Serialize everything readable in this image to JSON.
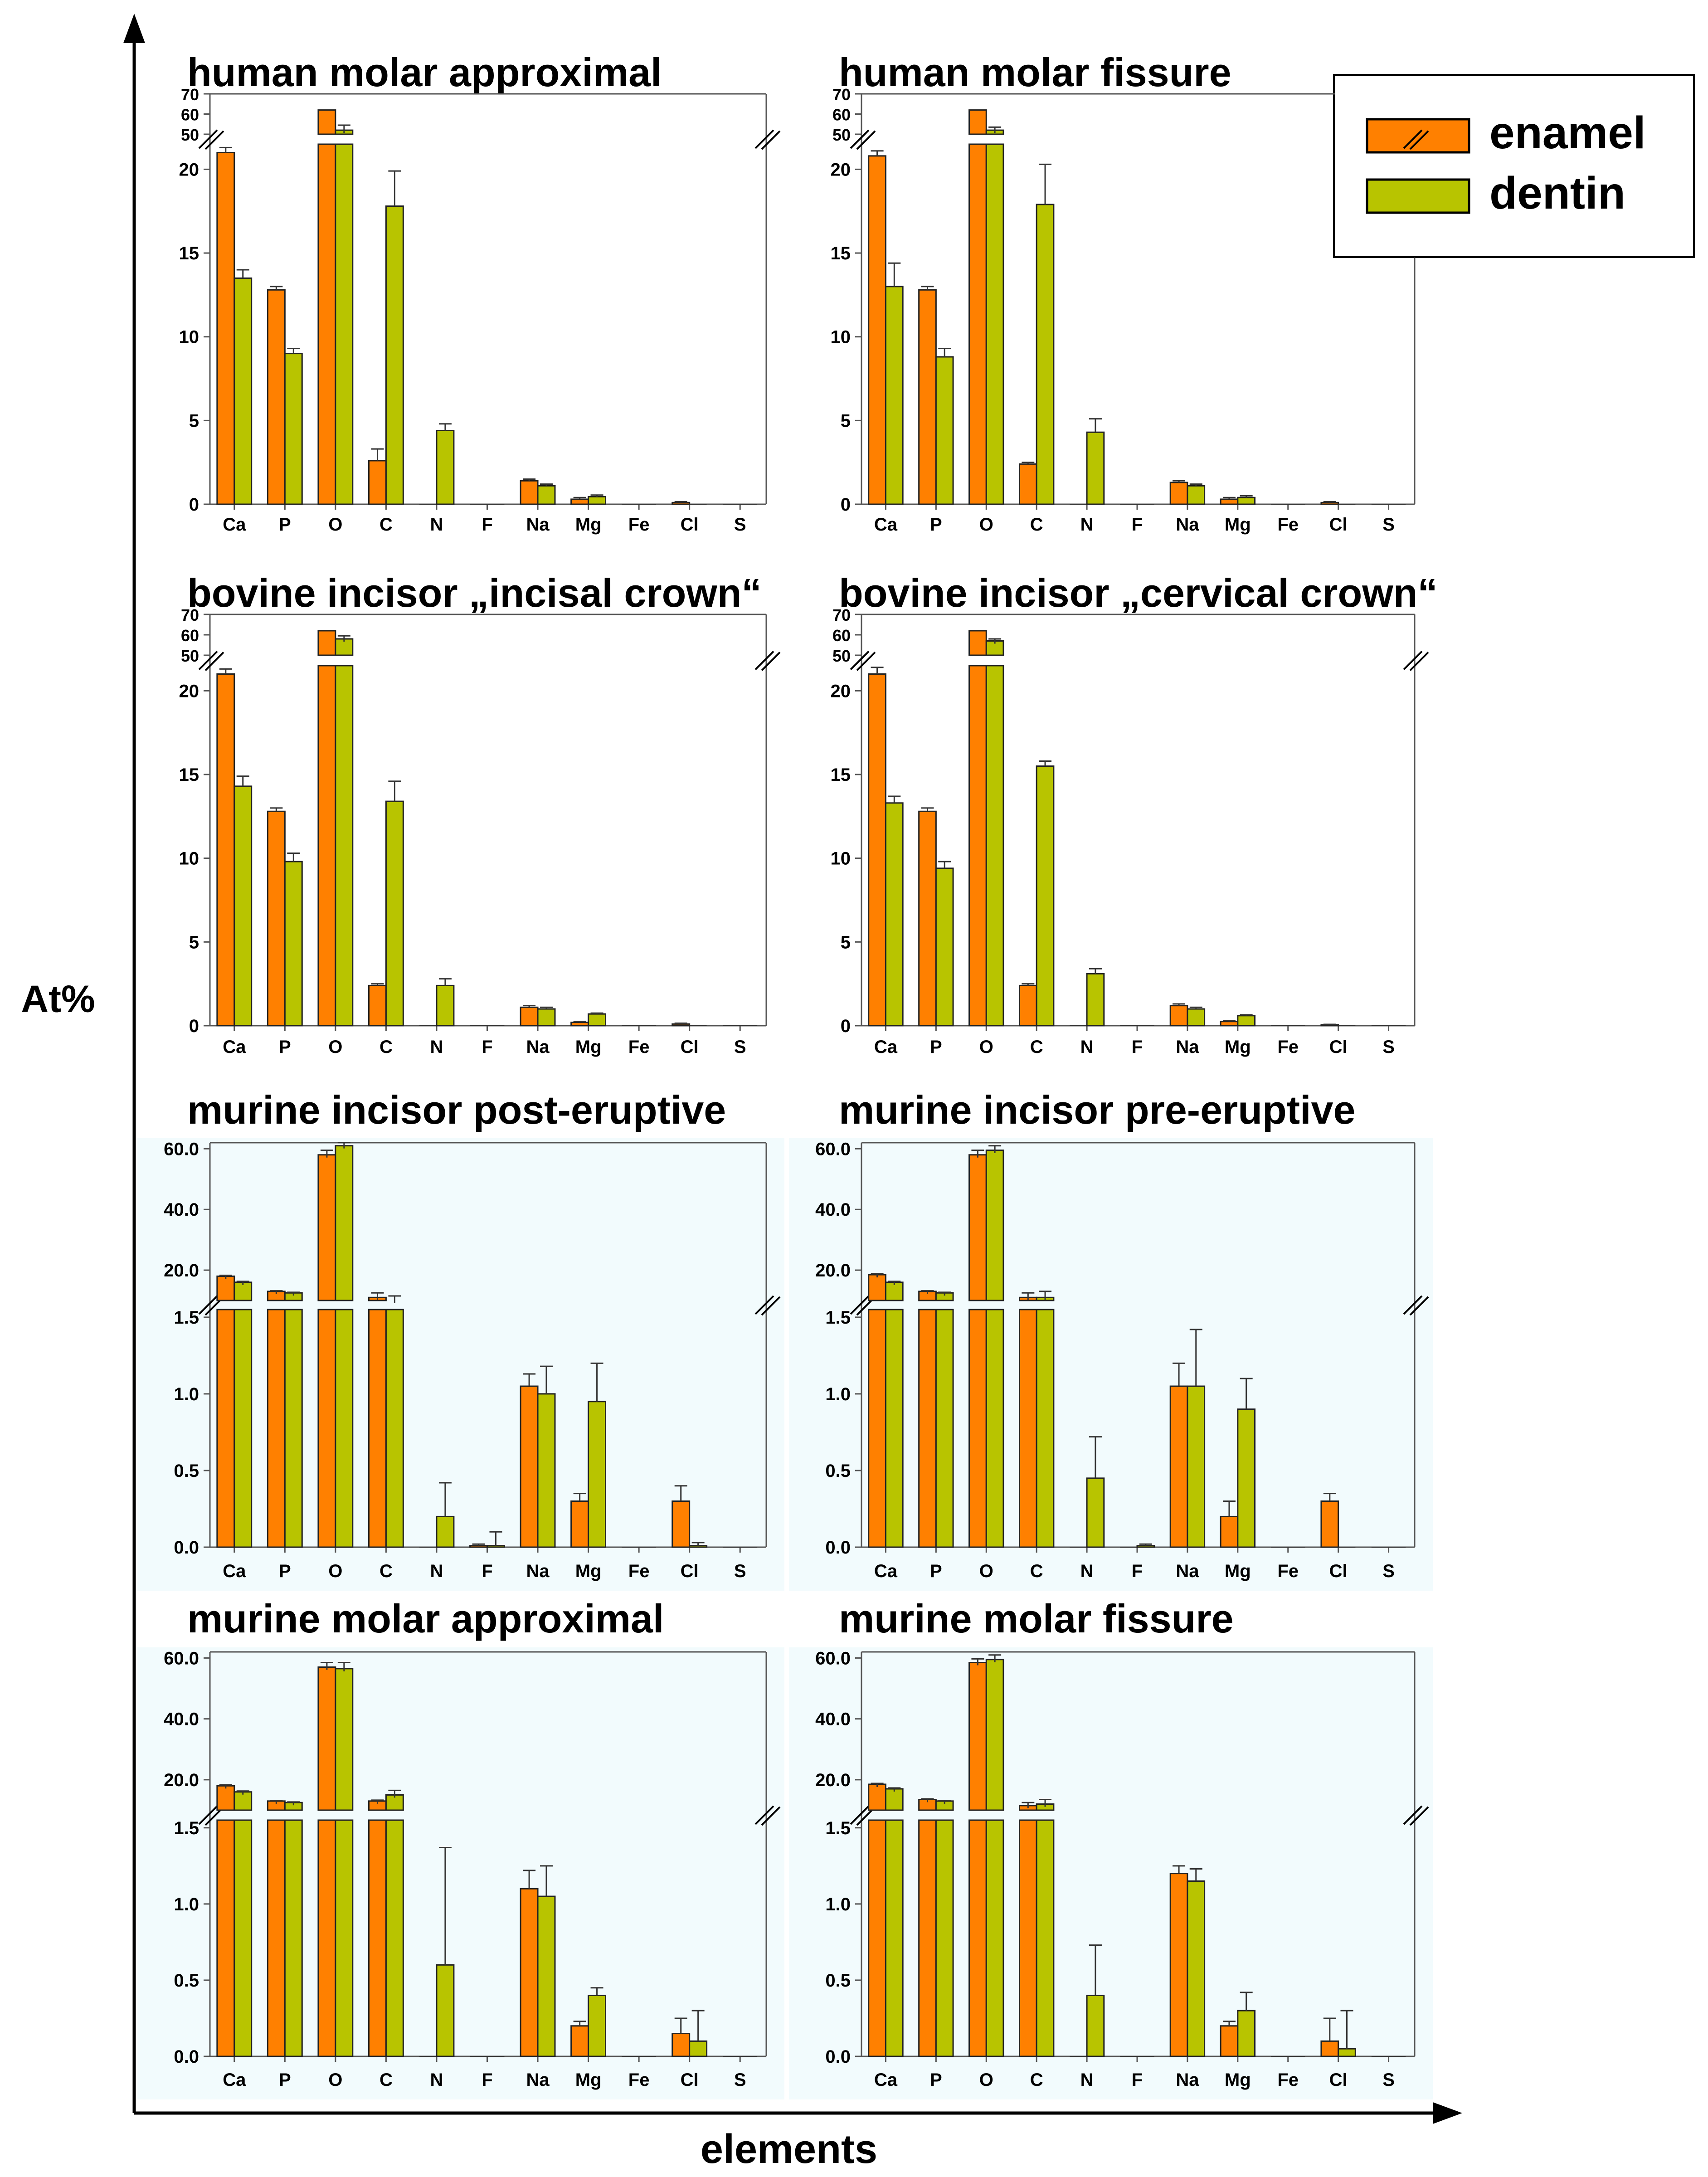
{
  "figure": {
    "y_axis_label": "At%",
    "x_axis_label": "elements",
    "legend": {
      "enamel": "enamel",
      "dentin": "dentin"
    }
  },
  "colors": {
    "enamel": "#ff8000",
    "dentin": "#b8c400",
    "murine_bg": "#f2fbfd"
  },
  "chart_data": [
    {
      "type": "bar",
      "title": "human molar approximal",
      "categories": [
        "Ca",
        "P",
        "O",
        "C",
        "N",
        "F",
        "Na",
        "Mg",
        "Fe",
        "Cl",
        "S"
      ],
      "xlabel": "elements",
      "ylabel": "At%",
      "series": [
        {
          "name": "enamel",
          "values": [
            21,
            12.8,
            62,
            2.6,
            0,
            0,
            1.4,
            0.3,
            0,
            0.1,
            0
          ],
          "errors": [
            0.3,
            0.2,
            0,
            0.7,
            0,
            0,
            0.1,
            0.1,
            0,
            0.05,
            0
          ]
        },
        {
          "name": "dentin",
          "values": [
            13.5,
            9,
            52,
            17.8,
            4.4,
            0,
            1.1,
            0.45,
            0,
            0,
            0
          ],
          "errors": [
            0.5,
            0.3,
            2.5,
            2.1,
            0.4,
            0,
            0.1,
            0.1,
            0,
            0,
            0
          ]
        }
      ],
      "axis_break": {
        "lower_ylim": [
          0,
          21.5
        ],
        "lower_ticks": [
          0,
          5,
          10,
          15,
          20
        ],
        "upper_ylim": [
          50,
          70
        ],
        "upper_ticks": [
          50,
          60,
          70
        ]
      }
    },
    {
      "type": "bar",
      "title": "human molar fissure",
      "categories": [
        "Ca",
        "P",
        "O",
        "C",
        "N",
        "F",
        "Na",
        "Mg",
        "Fe",
        "Cl",
        "S"
      ],
      "xlabel": "elements",
      "ylabel": "At%",
      "series": [
        {
          "name": "enamel",
          "values": [
            20.8,
            12.8,
            62,
            2.4,
            0,
            0,
            1.3,
            0.3,
            0,
            0.1,
            0
          ],
          "errors": [
            0.3,
            0.2,
            0,
            0.1,
            0,
            0,
            0.1,
            0.1,
            0,
            0.05,
            0
          ]
        },
        {
          "name": "dentin",
          "values": [
            13,
            8.8,
            52,
            17.9,
            4.3,
            0,
            1.1,
            0.4,
            0,
            0,
            0
          ],
          "errors": [
            1.4,
            0.5,
            1.5,
            2.4,
            0.8,
            0,
            0.1,
            0.1,
            0,
            0,
            0
          ]
        }
      ],
      "axis_break": {
        "lower_ylim": [
          0,
          21.5
        ],
        "lower_ticks": [
          0,
          5,
          10,
          15,
          20
        ],
        "upper_ylim": [
          50,
          70
        ],
        "upper_ticks": [
          50,
          60,
          70
        ]
      }
    },
    {
      "type": "bar",
      "title": "bovine incisor „incisal crown“",
      "categories": [
        "Ca",
        "P",
        "O",
        "C",
        "N",
        "F",
        "Na",
        "Mg",
        "Fe",
        "Cl",
        "S"
      ],
      "xlabel": "elements",
      "ylabel": "At%",
      "series": [
        {
          "name": "enamel",
          "values": [
            21,
            12.8,
            62,
            2.4,
            0,
            0,
            1.1,
            0.2,
            0,
            0.1,
            0
          ],
          "errors": [
            0.3,
            0.2,
            0,
            0.1,
            0,
            0,
            0.1,
            0.05,
            0,
            0.05,
            0
          ]
        },
        {
          "name": "dentin",
          "values": [
            14.3,
            9.8,
            58,
            13.4,
            2.4,
            0,
            1,
            0.7,
            0,
            0,
            0
          ],
          "errors": [
            0.6,
            0.5,
            1.5,
            1.2,
            0.4,
            0,
            0.1,
            0.05,
            0,
            0,
            0
          ]
        }
      ],
      "axis_break": {
        "lower_ylim": [
          0,
          21.5
        ],
        "lower_ticks": [
          0,
          5,
          10,
          15,
          20
        ],
        "upper_ylim": [
          50,
          70
        ],
        "upper_ticks": [
          50,
          60,
          70
        ]
      }
    },
    {
      "type": "bar",
      "title": "bovine incisor „cervical crown“",
      "categories": [
        "Ca",
        "P",
        "O",
        "C",
        "N",
        "F",
        "Na",
        "Mg",
        "Fe",
        "Cl",
        "S"
      ],
      "xlabel": "elements",
      "ylabel": "At%",
      "series": [
        {
          "name": "enamel",
          "values": [
            21,
            12.8,
            62,
            2.4,
            0,
            0,
            1.2,
            0.25,
            0,
            0.05,
            0
          ],
          "errors": [
            0.4,
            0.2,
            0,
            0.1,
            0,
            0,
            0.1,
            0.05,
            0,
            0.03,
            0
          ]
        },
        {
          "name": "dentin",
          "values": [
            13.3,
            9.4,
            57,
            15.5,
            3.1,
            0,
            1,
            0.6,
            0,
            0,
            0
          ],
          "errors": [
            0.4,
            0.4,
            1,
            0.3,
            0.3,
            0,
            0.1,
            0.05,
            0,
            0,
            0
          ]
        }
      ],
      "axis_break": {
        "lower_ylim": [
          0,
          21.5
        ],
        "lower_ticks": [
          0,
          5,
          10,
          15,
          20
        ],
        "upper_ylim": [
          50,
          70
        ],
        "upper_ticks": [
          50,
          60,
          70
        ]
      }
    },
    {
      "type": "bar",
      "title": "murine incisor post-eruptive",
      "categories": [
        "Ca",
        "P",
        "O",
        "C",
        "N",
        "F",
        "Na",
        "Mg",
        "Fe",
        "Cl",
        "S"
      ],
      "xlabel": "elements",
      "ylabel": "At%",
      "series": [
        {
          "name": "enamel",
          "values": [
            18,
            13,
            58,
            11,
            0,
            0.01,
            1.05,
            0.3,
            0,
            0.3,
            0
          ],
          "errors": [
            0.3,
            0.2,
            1.5,
            1.5,
            0,
            0.01,
            0.08,
            0.05,
            0,
            0.1,
            0
          ]
        },
        {
          "name": "dentin",
          "values": [
            16,
            12.5,
            61,
            10,
            0.2,
            0.01,
            1,
            0.95,
            0,
            0.01,
            0
          ],
          "errors": [
            0.3,
            0.2,
            1.5,
            1.5,
            0.22,
            0.09,
            0.18,
            0.25,
            0,
            0.02,
            0
          ]
        }
      ],
      "axis_break": {
        "lower_ylim": [
          0,
          1.55
        ],
        "lower_ticks": [
          0.0,
          0.5,
          1.0,
          1.5
        ],
        "upper_ylim": [
          10,
          62
        ],
        "upper_ticks": [
          20.0,
          40.0,
          60.0
        ]
      }
    },
    {
      "type": "bar",
      "title": "murine incisor pre-eruptive",
      "categories": [
        "Ca",
        "P",
        "O",
        "C",
        "N",
        "F",
        "Na",
        "Mg",
        "Fe",
        "Cl",
        "S"
      ],
      "xlabel": "elements",
      "ylabel": "At%",
      "series": [
        {
          "name": "enamel",
          "values": [
            18.5,
            13,
            58,
            11,
            0,
            0,
            1.05,
            0.2,
            0,
            0.3,
            0
          ],
          "errors": [
            0.3,
            0.2,
            1.5,
            1.5,
            0,
            0,
            0.15,
            0.1,
            0,
            0.05,
            0
          ]
        },
        {
          "name": "dentin",
          "values": [
            16,
            12.5,
            59.5,
            11,
            0.45,
            0.01,
            1.05,
            0.9,
            0,
            0,
            0
          ],
          "errors": [
            0.3,
            0.2,
            1.5,
            2,
            0.27,
            0.01,
            0.37,
            0.2,
            0,
            0,
            0
          ]
        }
      ],
      "axis_break": {
        "lower_ylim": [
          0,
          1.55
        ],
        "lower_ticks": [
          0.0,
          0.5,
          1.0,
          1.5
        ],
        "upper_ylim": [
          10,
          62
        ],
        "upper_ticks": [
          20.0,
          40.0,
          60.0
        ]
      }
    },
    {
      "type": "bar",
      "title": "murine molar approximal",
      "categories": [
        "Ca",
        "P",
        "O",
        "C",
        "N",
        "F",
        "Na",
        "Mg",
        "Fe",
        "Cl",
        "S"
      ],
      "xlabel": "elements",
      "ylabel": "At%",
      "series": [
        {
          "name": "enamel",
          "values": [
            18,
            13,
            57,
            13,
            0,
            0,
            1.1,
            0.2,
            0,
            0.15,
            0
          ],
          "errors": [
            0.3,
            0.2,
            1.5,
            0.3,
            0,
            0,
            0.12,
            0.03,
            0,
            0.1,
            0
          ]
        },
        {
          "name": "dentin",
          "values": [
            16,
            12.5,
            56.5,
            15,
            0.6,
            0,
            1.05,
            0.4,
            0,
            0.1,
            0
          ],
          "errors": [
            0.3,
            0.2,
            2,
            1.5,
            0.77,
            0,
            0.2,
            0.05,
            0,
            0.2,
            0
          ]
        }
      ],
      "axis_break": {
        "lower_ylim": [
          0,
          1.55
        ],
        "lower_ticks": [
          0.0,
          0.5,
          1.0,
          1.5
        ],
        "upper_ylim": [
          10,
          62
        ],
        "upper_ticks": [
          20.0,
          40.0,
          60.0
        ]
      }
    },
    {
      "type": "bar",
      "title": "murine molar fissure",
      "categories": [
        "Ca",
        "P",
        "O",
        "C",
        "N",
        "F",
        "Na",
        "Mg",
        "Fe",
        "Cl",
        "S"
      ],
      "xlabel": "elements",
      "ylabel": "At%",
      "series": [
        {
          "name": "enamel",
          "values": [
            18.5,
            13.5,
            58.5,
            11.5,
            0,
            0,
            1.2,
            0.2,
            0,
            0.1,
            0
          ],
          "errors": [
            0.3,
            0.2,
            1.2,
            1,
            0,
            0,
            0.05,
            0.03,
            0,
            0.15,
            0
          ]
        },
        {
          "name": "dentin",
          "values": [
            17,
            13,
            59.5,
            12,
            0.4,
            0,
            1.15,
            0.3,
            0,
            0.05,
            0
          ],
          "errors": [
            0.3,
            0.2,
            1.5,
            1.5,
            0.33,
            0,
            0.08,
            0.12,
            0,
            0.25,
            0
          ]
        }
      ],
      "axis_break": {
        "lower_ylim": [
          0,
          1.55
        ],
        "lower_ticks": [
          0.0,
          0.5,
          1.0,
          1.5
        ],
        "upper_ylim": [
          10,
          62
        ],
        "upper_ticks": [
          20.0,
          40.0,
          60.0
        ]
      }
    }
  ]
}
